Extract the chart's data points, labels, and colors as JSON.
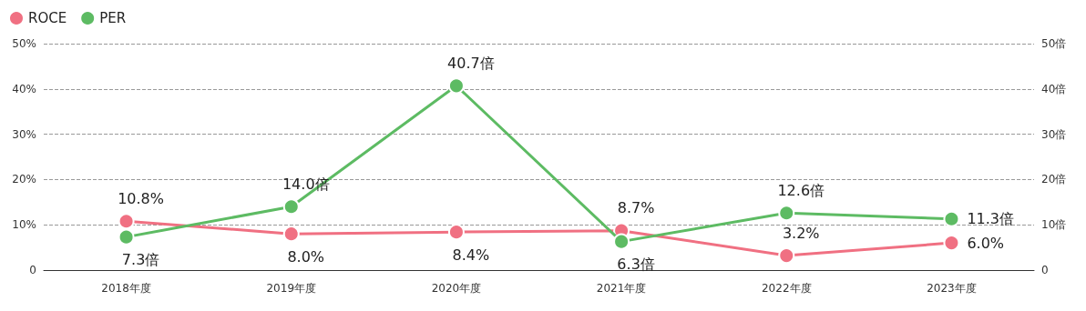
{
  "chart_data": {
    "type": "line",
    "categories": [
      "2018年度",
      "2019年度",
      "2020年度",
      "2021年度",
      "2022年度",
      "2023年度"
    ],
    "series": [
      {
        "name": "ROCE",
        "color": "#f07082",
        "values": [
          10.8,
          8.0,
          8.4,
          8.7,
          3.2,
          6.0
        ],
        "value_labels": [
          "10.8%",
          "8.0%",
          "8.4%",
          "8.7%",
          "3.2%",
          "6.0%"
        ]
      },
      {
        "name": "PER",
        "color": "#5dbb63",
        "axis": "y2",
        "values": [
          7.3,
          14.0,
          40.7,
          6.3,
          12.6,
          11.3
        ],
        "value_labels": [
          "7.3倍",
          "14.0倍",
          "40.7倍",
          "6.3倍",
          "12.6倍",
          "11.3倍"
        ]
      }
    ],
    "ylim": [
      0,
      50
    ],
    "yticks": [
      0,
      {
        "value": 10,
        "label": "10%"
      },
      {
        "value": 20,
        "label": "20%"
      },
      {
        "value": 30,
        "label": "30%"
      },
      {
        "value": 40,
        "label": "40%"
      },
      {
        "value": 50,
        "label": "50%"
      }
    ],
    "y2lim": [
      0,
      50
    ],
    "y2ticks": [
      0,
      {
        "value": 10,
        "label": "10倍"
      },
      {
        "value": 20,
        "label": "20倍"
      },
      {
        "value": 30,
        "label": "30倍"
      },
      {
        "value": 40,
        "label": "40倍"
      },
      {
        "value": 50,
        "label": "50倍"
      }
    ],
    "grid": "y",
    "legend": "top left",
    "marker": "circle",
    "line_style": "solid"
  }
}
